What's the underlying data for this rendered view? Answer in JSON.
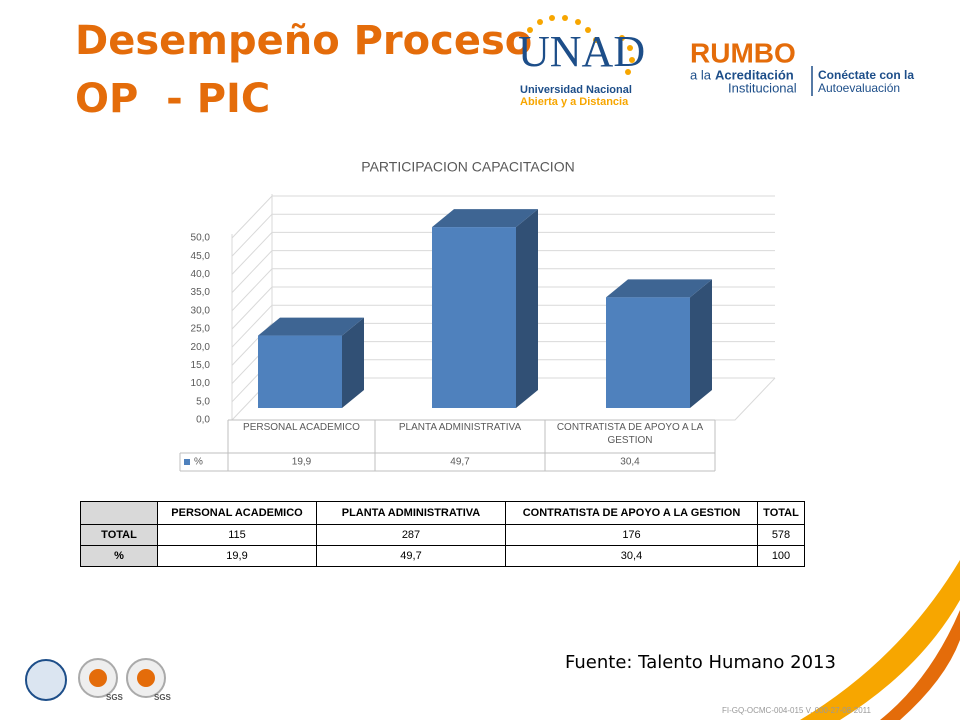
{
  "header": {
    "title_lines": [
      "Desempeño Proceso",
      "OP  - PIC"
    ]
  },
  "logos": {
    "unad": {
      "name": "UNAD",
      "line1": "Universidad Nacional",
      "line2": "Abierta y a Distancia"
    },
    "rumbo": {
      "name": "RUMBO",
      "pre": "a la",
      "bold": "Acreditación",
      "line2": "Institucional",
      "connect": "Conéctate con la",
      "line4": "Autoevaluación"
    },
    "seals": [
      "SGS",
      "SGS"
    ]
  },
  "chart_data": {
    "type": "bar3d",
    "title": "PARTICIPACION CAPACITACION",
    "categories": [
      "PERSONAL ACADEMICO",
      "PLANTA  ADMINISTRATIVA",
      "CONTRATISTA DE APOYO A LA GESTION"
    ],
    "series": [
      {
        "name": "%",
        "color": "#4f81bd",
        "values": [
          19.9,
          49.7,
          30.4
        ],
        "value_labels": [
          "19,9",
          "49,7",
          "30,4"
        ]
      }
    ],
    "ylim": [
      0,
      50
    ],
    "yticks": [
      {
        "value": 0,
        "label": "0,0"
      },
      {
        "value": 5,
        "label": "5,0"
      },
      {
        "value": 10,
        "label": "10,0"
      },
      {
        "value": 15,
        "label": "15,0"
      },
      {
        "value": 20,
        "label": "20,0"
      },
      {
        "value": 25,
        "label": "25,0"
      },
      {
        "value": 30,
        "label": "30,0"
      },
      {
        "value": 35,
        "label": "35,0"
      },
      {
        "value": 40,
        "label": "40,0"
      },
      {
        "value": 45,
        "label": "45,0"
      },
      {
        "value": 50,
        "label": "50,0"
      }
    ],
    "grid": true,
    "data_table": true
  },
  "table": {
    "columns": [
      "PERSONAL ACADEMICO",
      "PLANTA  ADMINISTRATIVA",
      "CONTRATISTA DE APOYO A LA GESTION",
      "TOTAL"
    ],
    "rows": [
      {
        "label": "TOTAL",
        "cells": [
          "115",
          "287",
          "176",
          "578"
        ]
      },
      {
        "label": "%",
        "cells": [
          "19,9",
          "49,7",
          "30,4",
          "100"
        ]
      }
    ]
  },
  "source": "Fuente: Talento Humano 2013",
  "footer": "FI-GQ-OCMC-004-015 V. 000-27-08-2011"
}
